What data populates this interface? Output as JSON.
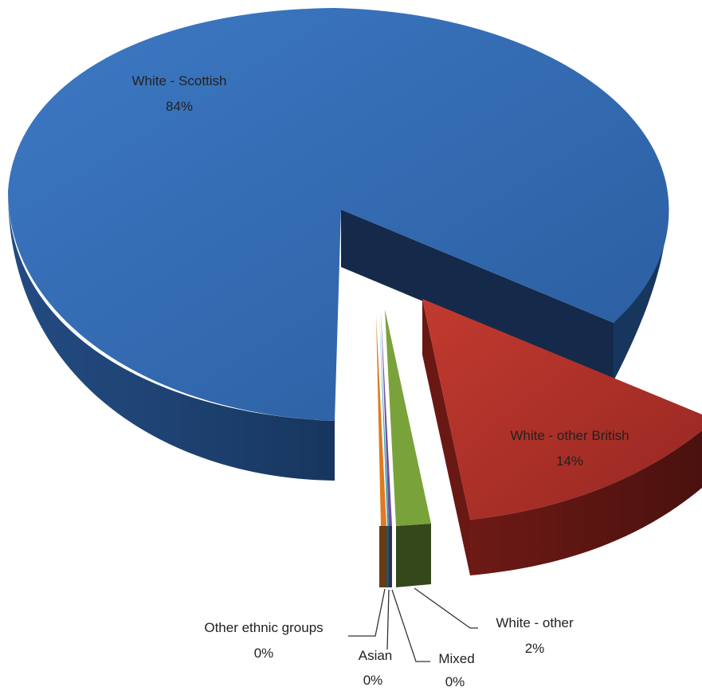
{
  "chart_data": {
    "type": "pie",
    "style": "3d-exploded",
    "title": "",
    "slices": [
      {
        "label": "White - Scottish",
        "value_label": "84%",
        "value": 84,
        "color": "#2F66AD"
      },
      {
        "label": "White - other British",
        "value_label": "14%",
        "value": 14,
        "color": "#B32E27"
      },
      {
        "label": "White - other",
        "value_label": "2%",
        "value": 2,
        "color": "#7AA23B"
      },
      {
        "label": "Mixed",
        "value_label": "0%",
        "value": 0,
        "color": "#6E4F9A"
      },
      {
        "label": "Asian",
        "value_label": "0%",
        "value": 0,
        "color": "#2E9DB5"
      },
      {
        "label": "Other ethnic groups",
        "value_label": "0%",
        "value": 0,
        "color": "#E07A1E"
      }
    ]
  }
}
